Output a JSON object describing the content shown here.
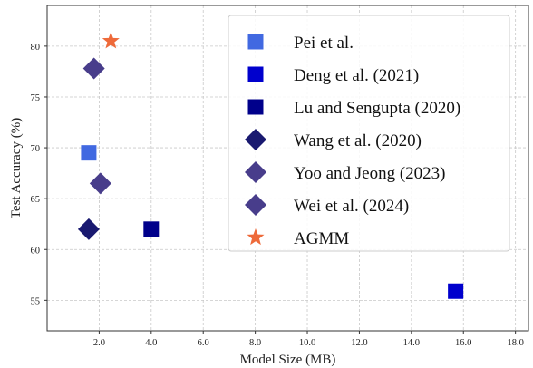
{
  "chart_data": {
    "type": "scatter",
    "xlabel": "Model Size (MB)",
    "ylabel": "Test Accuracy (%)",
    "xlim": [
      0,
      18.5
    ],
    "ylim": [
      52,
      84
    ],
    "x_ticks": [
      2,
      4,
      6,
      8,
      10,
      12,
      14,
      16,
      18
    ],
    "x_tick_labels": [
      "2.0",
      "4.0",
      "6.0",
      "8.0",
      "10.0",
      "12.0",
      "14.0",
      "16.0",
      "18.0"
    ],
    "y_ticks": [
      55,
      60,
      65,
      70,
      75,
      80
    ],
    "y_tick_labels": [
      "55",
      "60",
      "65",
      "70",
      "75",
      "80"
    ],
    "grid": true,
    "legend_position": "top-right",
    "series": [
      {
        "name": "Pei et al.",
        "marker": "square",
        "color": "#4169E1",
        "points": [
          {
            "x": 1.6,
            "y": 69.5
          }
        ]
      },
      {
        "name": "Deng et al. (2021)",
        "marker": "square",
        "color": "#0000CD",
        "points": [
          {
            "x": 15.7,
            "y": 55.9
          }
        ]
      },
      {
        "name": "Lu and Sengupta (2020)",
        "marker": "square",
        "color": "#00008B",
        "points": [
          {
            "x": 4.0,
            "y": 62.0
          }
        ]
      },
      {
        "name": "Wang et al. (2020)",
        "marker": "diamond",
        "color": "#191970",
        "points": [
          {
            "x": 1.6,
            "y": 62.0
          }
        ]
      },
      {
        "name": "Yoo and Jeong (2023)",
        "marker": "diamond",
        "color": "#483D8B",
        "points": [
          {
            "x": 2.05,
            "y": 66.5
          }
        ]
      },
      {
        "name": "Wei et al. (2024)",
        "marker": "diamond",
        "color": "#483D8B",
        "points": [
          {
            "x": 1.8,
            "y": 77.8
          }
        ]
      },
      {
        "name": "AGMM",
        "marker": "star",
        "color": "#EE6A3A",
        "points": [
          {
            "x": 2.45,
            "y": 80.5
          }
        ]
      }
    ]
  }
}
